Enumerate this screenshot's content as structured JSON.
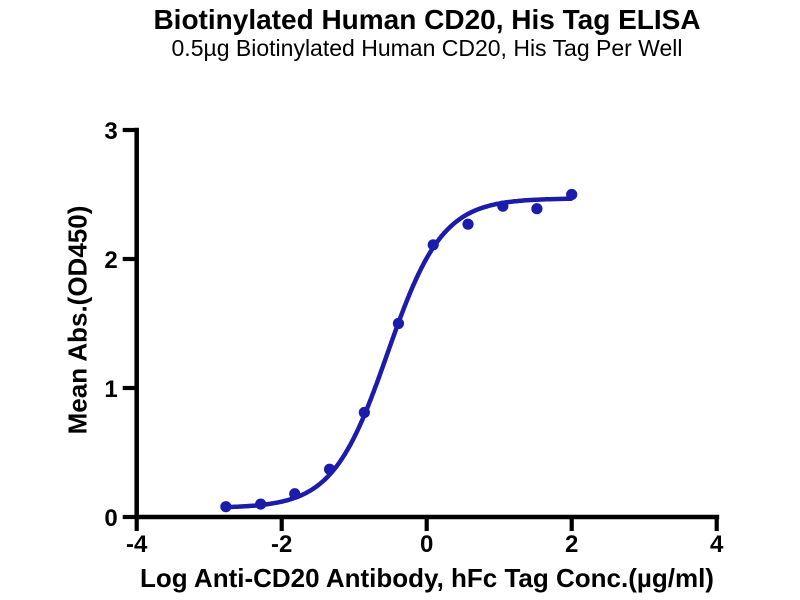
{
  "chart_data": {
    "type": "scatter",
    "title": "Biotinylated Human CD20, His Tag ELISA",
    "subtitle": "0.5µg Biotinylated Human CD20, His Tag Per Well",
    "xlabel": "Log Anti-CD20 Antibody, hFc Tag Conc.(µg/ml)",
    "ylabel": "Mean Abs.(OD450)",
    "x": [
      -2.77,
      -2.29,
      -1.82,
      -1.34,
      -0.86,
      -0.39,
      0.09,
      0.57,
      1.05,
      1.52,
      2.0
    ],
    "y": [
      0.08,
      0.1,
      0.18,
      0.37,
      0.81,
      1.5,
      2.11,
      2.27,
      2.41,
      2.39,
      2.5
    ],
    "series_name": "Anti-CD20 Antibody, hFc Tag",
    "fit_curve": {
      "model": "4PL",
      "bottom": 0.07,
      "top": 2.47,
      "logEC50": -0.54,
      "hill": 1.15
    },
    "xticks": [
      -4,
      -2,
      0,
      2,
      4
    ],
    "yticks": [
      0,
      1,
      2,
      3
    ],
    "xlim": [
      -4,
      4
    ],
    "ylim": [
      0,
      3
    ],
    "grid": false,
    "legend": false,
    "colors": {
      "series": "#1c1caa",
      "axis": "#000000",
      "text": "#000000",
      "background": "#ffffff"
    }
  }
}
